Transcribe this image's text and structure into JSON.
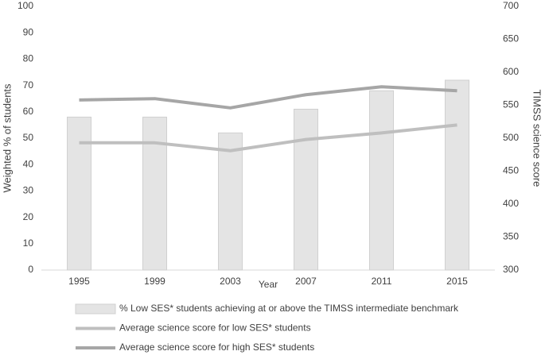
{
  "chart_data": {
    "type": "bar",
    "x_label": "Year",
    "y_label": "Weighted % of students",
    "y2_label": "TIMSS science score",
    "categories": [
      "1995",
      "1999",
      "2003",
      "2007",
      "2011",
      "2015"
    ],
    "series": [
      {
        "name": "% Low SES* students achieving at or above the TIMSS intermediate benchmark",
        "type": "bar",
        "color": "#e4e4e4",
        "values": [
          58,
          58,
          52,
          61,
          68,
          72
        ]
      },
      {
        "name": "Average science score for low SES* students",
        "type": "line",
        "axis": "y2",
        "color": "#bfbfbf",
        "values": [
          493,
          493,
          481,
          498,
          508,
          520
        ]
      },
      {
        "name": "Average science score for high SES* students",
        "type": "line",
        "axis": "y2",
        "color": "#a6a6a6",
        "values": [
          558,
          560,
          546,
          566,
          578,
          572
        ]
      }
    ],
    "ylim": [
      0,
      100
    ],
    "yticks": [
      0,
      10,
      20,
      30,
      40,
      50,
      60,
      70,
      80,
      90,
      100
    ],
    "y2lim": [
      300,
      700
    ],
    "y2ticks": [
      300,
      350,
      400,
      450,
      500,
      550,
      600,
      650,
      700
    ],
    "grid": false
  }
}
